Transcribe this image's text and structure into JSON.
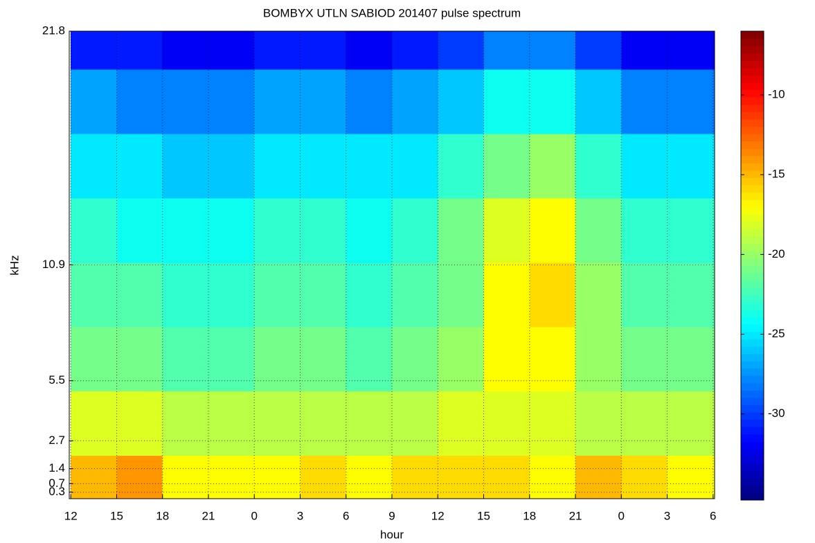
{
  "chart_data": {
    "type": "heatmap",
    "title": "BOMBYX UTLN SABIOD 201407 pulse spectrum",
    "xlabel": "hour",
    "ylabel": "kHz",
    "x": [
      12,
      15,
      18,
      21,
      24,
      27,
      30,
      33,
      36,
      39,
      42,
      45,
      48,
      51
    ],
    "y": [
      0,
      2,
      5,
      8,
      11,
      14,
      17,
      20
    ],
    "z": [
      [
        -15,
        -14,
        -17,
        -17,
        -17,
        -16,
        -17,
        -16,
        -16,
        -16,
        -17,
        -15,
        -16,
        -17
      ],
      [
        -18,
        -18,
        -19,
        -19,
        -19,
        -19,
        -19,
        -19,
        -18,
        -18,
        -18,
        -19,
        -19,
        -19
      ],
      [
        -21,
        -21,
        -22,
        -22,
        -21,
        -21,
        -22,
        -21,
        -20,
        -17,
        -17,
        -20,
        -21,
        -21
      ],
      [
        -22,
        -22,
        -23,
        -23,
        -22,
        -22,
        -23,
        -22,
        -21,
        -17,
        -16,
        -20,
        -22,
        -22
      ],
      [
        -23,
        -24,
        -24,
        -24,
        -23,
        -23,
        -24,
        -23,
        -21,
        -18,
        -17,
        -21,
        -23,
        -23
      ],
      [
        -25,
        -25,
        -26,
        -26,
        -25,
        -25,
        -25,
        -25,
        -23,
        -21,
        -20,
        -23,
        -25,
        -25
      ],
      [
        -27,
        -28,
        -28,
        -28,
        -27,
        -27,
        -28,
        -27,
        -26,
        -24,
        -24,
        -26,
        -28,
        -28
      ],
      [
        -31,
        -31,
        -32,
        -32,
        -31,
        -31,
        -32,
        -31,
        -30,
        -28,
        -28,
        -30,
        -32,
        -32
      ]
    ],
    "xlim": [
      11.9,
      54.1
    ],
    "ylim": [
      0,
      21.8
    ],
    "xticks": [
      12,
      15,
      18,
      21,
      {
        "value": 24,
        "label": "0"
      },
      {
        "value": 27,
        "label": "3"
      },
      {
        "value": 30,
        "label": "6"
      },
      {
        "value": 33,
        "label": "9"
      },
      {
        "value": 36,
        "label": "12"
      },
      {
        "value": 39,
        "label": "15"
      },
      {
        "value": 42,
        "label": "18"
      },
      {
        "value": 45,
        "label": "21"
      },
      {
        "value": 48,
        "label": "0"
      },
      {
        "value": 51,
        "label": "3"
      },
      {
        "value": 54,
        "label": "6"
      }
    ],
    "yticks": [
      0.3,
      0.7,
      1.4,
      2.7,
      5.5,
      10.9,
      21.8
    ],
    "clim": [
      -35.4,
      -6.0
    ],
    "cticks": [
      -30,
      -25,
      -20,
      -15,
      -10
    ],
    "colormap": "jet",
    "grid": true
  }
}
